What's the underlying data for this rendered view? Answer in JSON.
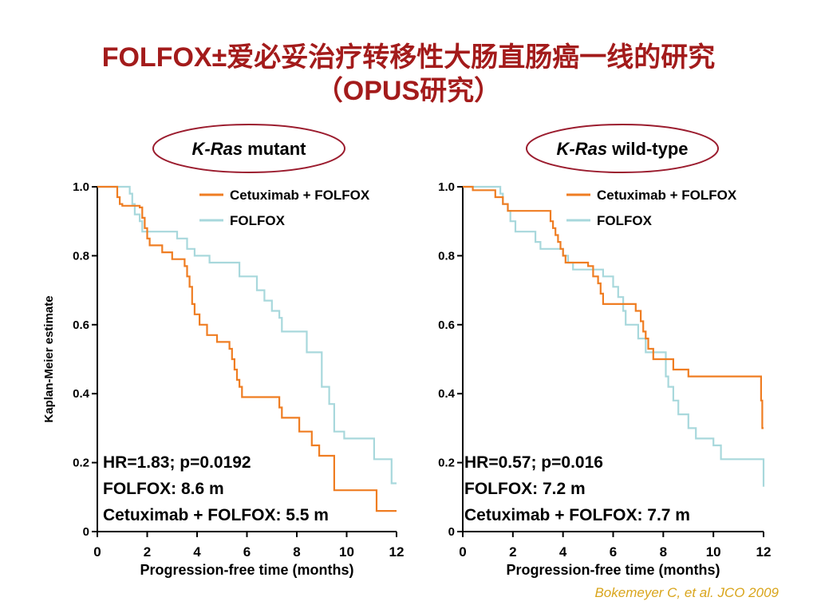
{
  "title": {
    "line1": "FOLFOX±爱必妥治疗转移性大肠直肠癌一线的研究",
    "line2": "（OPUS研究）"
  },
  "citation": "Bokemeyer C, et al. JCO 2009",
  "colors": {
    "title": "#a31b1b",
    "treatment": "#ef7d22",
    "control": "#a8d8dc",
    "oval": "#9b1c2e",
    "citation": "#d9a51c"
  },
  "chart_data": [
    {
      "type": "line",
      "step": true,
      "panel_label": {
        "italic": "K-Ras",
        "rest": " mutant"
      },
      "xlabel": "Progression-free time (months)",
      "ylabel": "Kaplan-Meier estimate",
      "xlim": [
        0,
        12
      ],
      "ylim": [
        0,
        1.0
      ],
      "xticks": [
        "0",
        "2",
        "4",
        "6",
        "8",
        "10",
        "12"
      ],
      "yticks": [
        "0",
        "0.2",
        "0.4",
        "0.6",
        "0.8",
        "1.0"
      ],
      "legend_position": "top-right",
      "series": [
        {
          "name": "Cetuximab + FOLFOX",
          "color": "#ef7d22",
          "x": [
            0,
            0.8,
            0.9,
            1.0,
            1.7,
            1.8,
            1.9,
            2.0,
            2.1,
            2.6,
            3.0,
            3.5,
            3.6,
            3.7,
            3.8,
            3.9,
            4.1,
            4.2,
            4.4,
            4.8,
            5.3,
            5.4,
            5.5,
            5.6,
            5.7,
            5.8,
            7.3,
            7.4,
            8.1,
            8.6,
            8.9,
            9.5,
            11.2,
            12.0
          ],
          "y": [
            1.0,
            0.97,
            0.95,
            0.945,
            0.94,
            0.91,
            0.88,
            0.85,
            0.83,
            0.81,
            0.79,
            0.77,
            0.74,
            0.71,
            0.66,
            0.63,
            0.6,
            0.6,
            0.57,
            0.55,
            0.53,
            0.5,
            0.47,
            0.44,
            0.42,
            0.39,
            0.36,
            0.33,
            0.29,
            0.25,
            0.22,
            0.12,
            0.06,
            0.06
          ]
        },
        {
          "name": "FOLFOX",
          "color": "#a8d8dc",
          "x": [
            0,
            1.3,
            1.4,
            1.5,
            1.7,
            1.8,
            3.2,
            3.6,
            3.9,
            4.5,
            4.7,
            5.7,
            6.4,
            6.7,
            7.0,
            7.3,
            7.4,
            8.4,
            9.0,
            9.3,
            9.5,
            9.9,
            11.1,
            11.8,
            12.0
          ],
          "y": [
            1.0,
            0.98,
            0.95,
            0.92,
            0.9,
            0.87,
            0.85,
            0.82,
            0.8,
            0.78,
            0.78,
            0.74,
            0.7,
            0.67,
            0.64,
            0.62,
            0.58,
            0.52,
            0.42,
            0.37,
            0.29,
            0.27,
            0.21,
            0.14,
            0.14
          ]
        }
      ],
      "annotations": [
        "HR=1.83; p=0.0192",
        "FOLFOX: 8.6 m",
        "Cetuximab + FOLFOX: 5.5 m"
      ]
    },
    {
      "type": "line",
      "step": true,
      "panel_label": {
        "italic": "K-Ras",
        "rest": " wild-type"
      },
      "xlabel": "Progression-free time (months)",
      "ylabel": "",
      "xlim": [
        0,
        12
      ],
      "ylim": [
        0,
        1.0
      ],
      "xticks": [
        "0",
        "2",
        "4",
        "6",
        "8",
        "10",
        "12"
      ],
      "yticks": [
        "0",
        "0.2",
        "0.4",
        "0.6",
        "0.8",
        "1.0"
      ],
      "legend_position": "top-right",
      "series": [
        {
          "name": "Cetuximab + FOLFOX",
          "color": "#ef7d22",
          "x": [
            0,
            0.4,
            1.3,
            1.6,
            1.8,
            2.0,
            3.5,
            3.6,
            3.7,
            3.8,
            3.9,
            4.0,
            4.1,
            4.2,
            5.0,
            5.2,
            5.4,
            5.5,
            5.6,
            6.1,
            6.9,
            7.1,
            7.2,
            7.3,
            7.4,
            7.6,
            8.2,
            8.4,
            9.0,
            9.3,
            11.9,
            11.95,
            12.0
          ],
          "y": [
            1.0,
            0.99,
            0.97,
            0.95,
            0.93,
            0.93,
            0.9,
            0.88,
            0.86,
            0.84,
            0.82,
            0.8,
            0.78,
            0.78,
            0.77,
            0.74,
            0.72,
            0.69,
            0.66,
            0.66,
            0.64,
            0.61,
            0.58,
            0.56,
            0.53,
            0.5,
            0.5,
            0.47,
            0.45,
            0.45,
            0.38,
            0.3,
            0.3
          ]
        },
        {
          "name": "FOLFOX",
          "color": "#a8d8dc",
          "x": [
            0,
            1.5,
            1.6,
            1.8,
            1.9,
            2.1,
            2.9,
            3.1,
            4.0,
            4.2,
            4.4,
            5.6,
            6.0,
            6.2,
            6.4,
            6.5,
            7.0,
            7.3,
            8.1,
            8.2,
            8.4,
            8.6,
            9.0,
            9.3,
            10.0,
            10.3,
            12.0
          ],
          "y": [
            1.0,
            0.98,
            0.95,
            0.93,
            0.9,
            0.87,
            0.84,
            0.82,
            0.8,
            0.78,
            0.76,
            0.74,
            0.71,
            0.68,
            0.64,
            0.6,
            0.56,
            0.52,
            0.45,
            0.42,
            0.38,
            0.34,
            0.3,
            0.27,
            0.25,
            0.21,
            0.13
          ]
        }
      ],
      "annotations": [
        "HR=0.57; p=0.016",
        "FOLFOX: 7.2 m",
        "Cetuximab + FOLFOX: 7.7 m"
      ]
    }
  ]
}
